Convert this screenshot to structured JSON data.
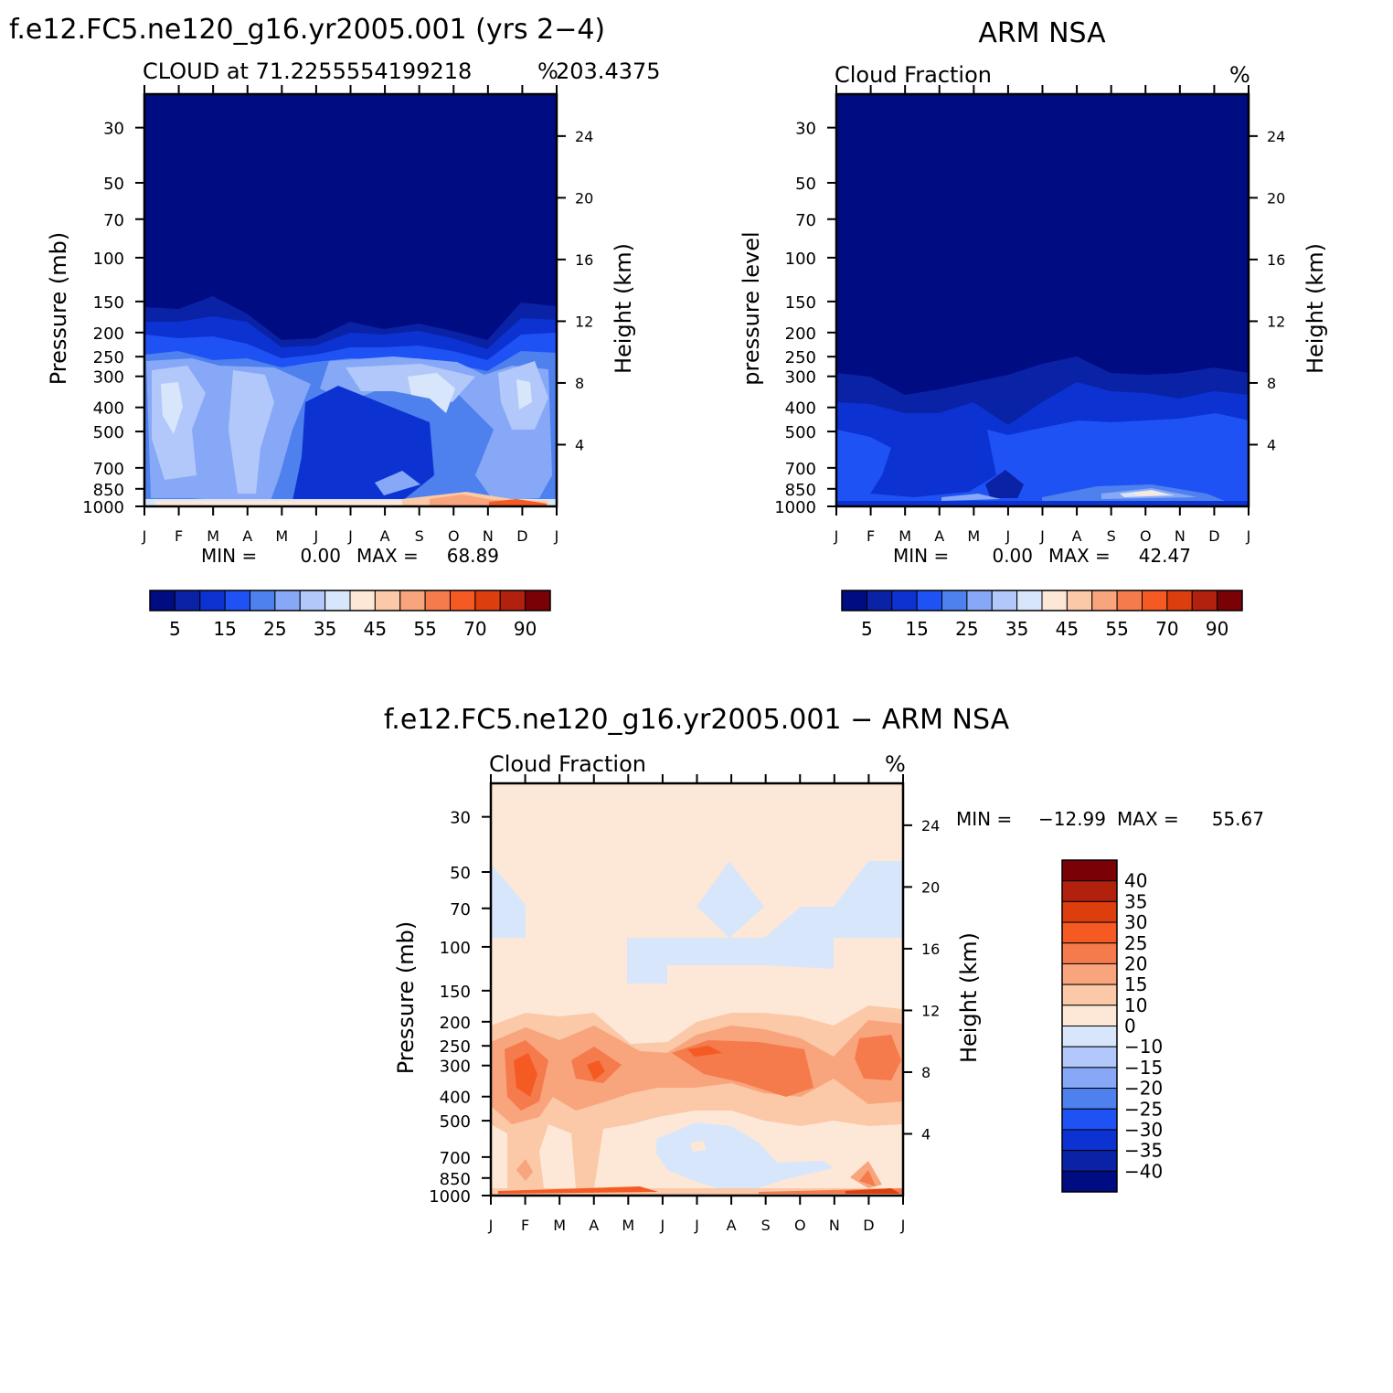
{
  "chart_data": [
    {
      "type": "heatmap",
      "title": "f.e12.FC5.ne120_g16.yr2005.001 (yrs 2−4)",
      "subtitle_left": "CLOUD at 71.2255554199218",
      "subtitle_right": "203.4375",
      "unit": "%",
      "ylabel": "Pressure (mb)",
      "y2label": "Height (km)",
      "x_ticks": [
        "J",
        "F",
        "M",
        "A",
        "M",
        "J",
        "J",
        "A",
        "S",
        "O",
        "N",
        "D",
        "J"
      ],
      "y_ticks": [
        "30",
        "50",
        "70",
        "100",
        "150",
        "200",
        "250",
        "300",
        "400",
        "500",
        "700",
        "850",
        "1000"
      ],
      "y2_ticks": [
        "24",
        "20",
        "16",
        "12",
        "8",
        "4"
      ],
      "stats": {
        "min_label": "MIN =",
        "min": "0.00",
        "max_label": "MAX =",
        "max": "68.89"
      },
      "colorbar_labels": [
        "5",
        "15",
        "25",
        "35",
        "45",
        "55",
        "70",
        "90"
      ]
    },
    {
      "type": "heatmap",
      "title": "ARM NSA",
      "subtitle_left": "Cloud Fraction",
      "unit": "%",
      "ylabel": "pressure level",
      "y2label": "Height (km)",
      "x_ticks": [
        "J",
        "F",
        "M",
        "A",
        "M",
        "J",
        "J",
        "A",
        "S",
        "O",
        "N",
        "D",
        "J"
      ],
      "y_ticks": [
        "30",
        "50",
        "70",
        "100",
        "150",
        "200",
        "250",
        "300",
        "400",
        "500",
        "700",
        "850",
        "1000"
      ],
      "y2_ticks": [
        "24",
        "20",
        "16",
        "12",
        "8",
        "4"
      ],
      "stats": {
        "min_label": "MIN =",
        "min": "0.00",
        "max_label": "MAX =",
        "max": "42.47"
      },
      "colorbar_labels": [
        "5",
        "15",
        "25",
        "35",
        "45",
        "55",
        "70",
        "90"
      ]
    },
    {
      "type": "heatmap",
      "title": "f.e12.FC5.ne120_g16.yr2005.001 − ARM NSA",
      "subtitle_left": "Cloud Fraction",
      "unit": "%",
      "ylabel": "Pressure (mb)",
      "y2label": "Height (km)",
      "x_ticks": [
        "J",
        "F",
        "M",
        "A",
        "M",
        "J",
        "J",
        "A",
        "S",
        "O",
        "N",
        "D",
        "J"
      ],
      "y_ticks": [
        "30",
        "50",
        "70",
        "100",
        "150",
        "200",
        "250",
        "300",
        "400",
        "500",
        "700",
        "850",
        "1000"
      ],
      "y2_ticks": [
        "24",
        "20",
        "16",
        "12",
        "8",
        "4"
      ],
      "stats": {
        "min_label": "MIN =",
        "min": "−12.99",
        "max_label": "MAX =",
        "max": "55.67"
      },
      "colorbar_labels": [
        "40",
        "35",
        "30",
        "25",
        "20",
        "15",
        "10",
        "0",
        "−10",
        "−15",
        "−20",
        "−25",
        "−30",
        "−35",
        "−40"
      ]
    }
  ],
  "palettes": {
    "cloud": [
      "#000c82",
      "#0a22a6",
      "#0c32d2",
      "#1e52f5",
      "#4e80ee",
      "#86a8f6",
      "#b2c8fa",
      "#d8e6fb",
      "#fde8d8",
      "#fbc8a8",
      "#f8a47c",
      "#f57a4c",
      "#f55a23",
      "#dd3e0d",
      "#b2200e",
      "#7a0206"
    ],
    "diff": [
      "#7a0206",
      "#b2200e",
      "#dd3e0d",
      "#f55a23",
      "#f57a4c",
      "#f8a47c",
      "#fbc8a8",
      "#fde8d8",
      "#d8e6fb",
      "#b2c8fa",
      "#86a8f6",
      "#4e80ee",
      "#1e52f5",
      "#0c32d2",
      "#0a22a6",
      "#000c82"
    ]
  }
}
